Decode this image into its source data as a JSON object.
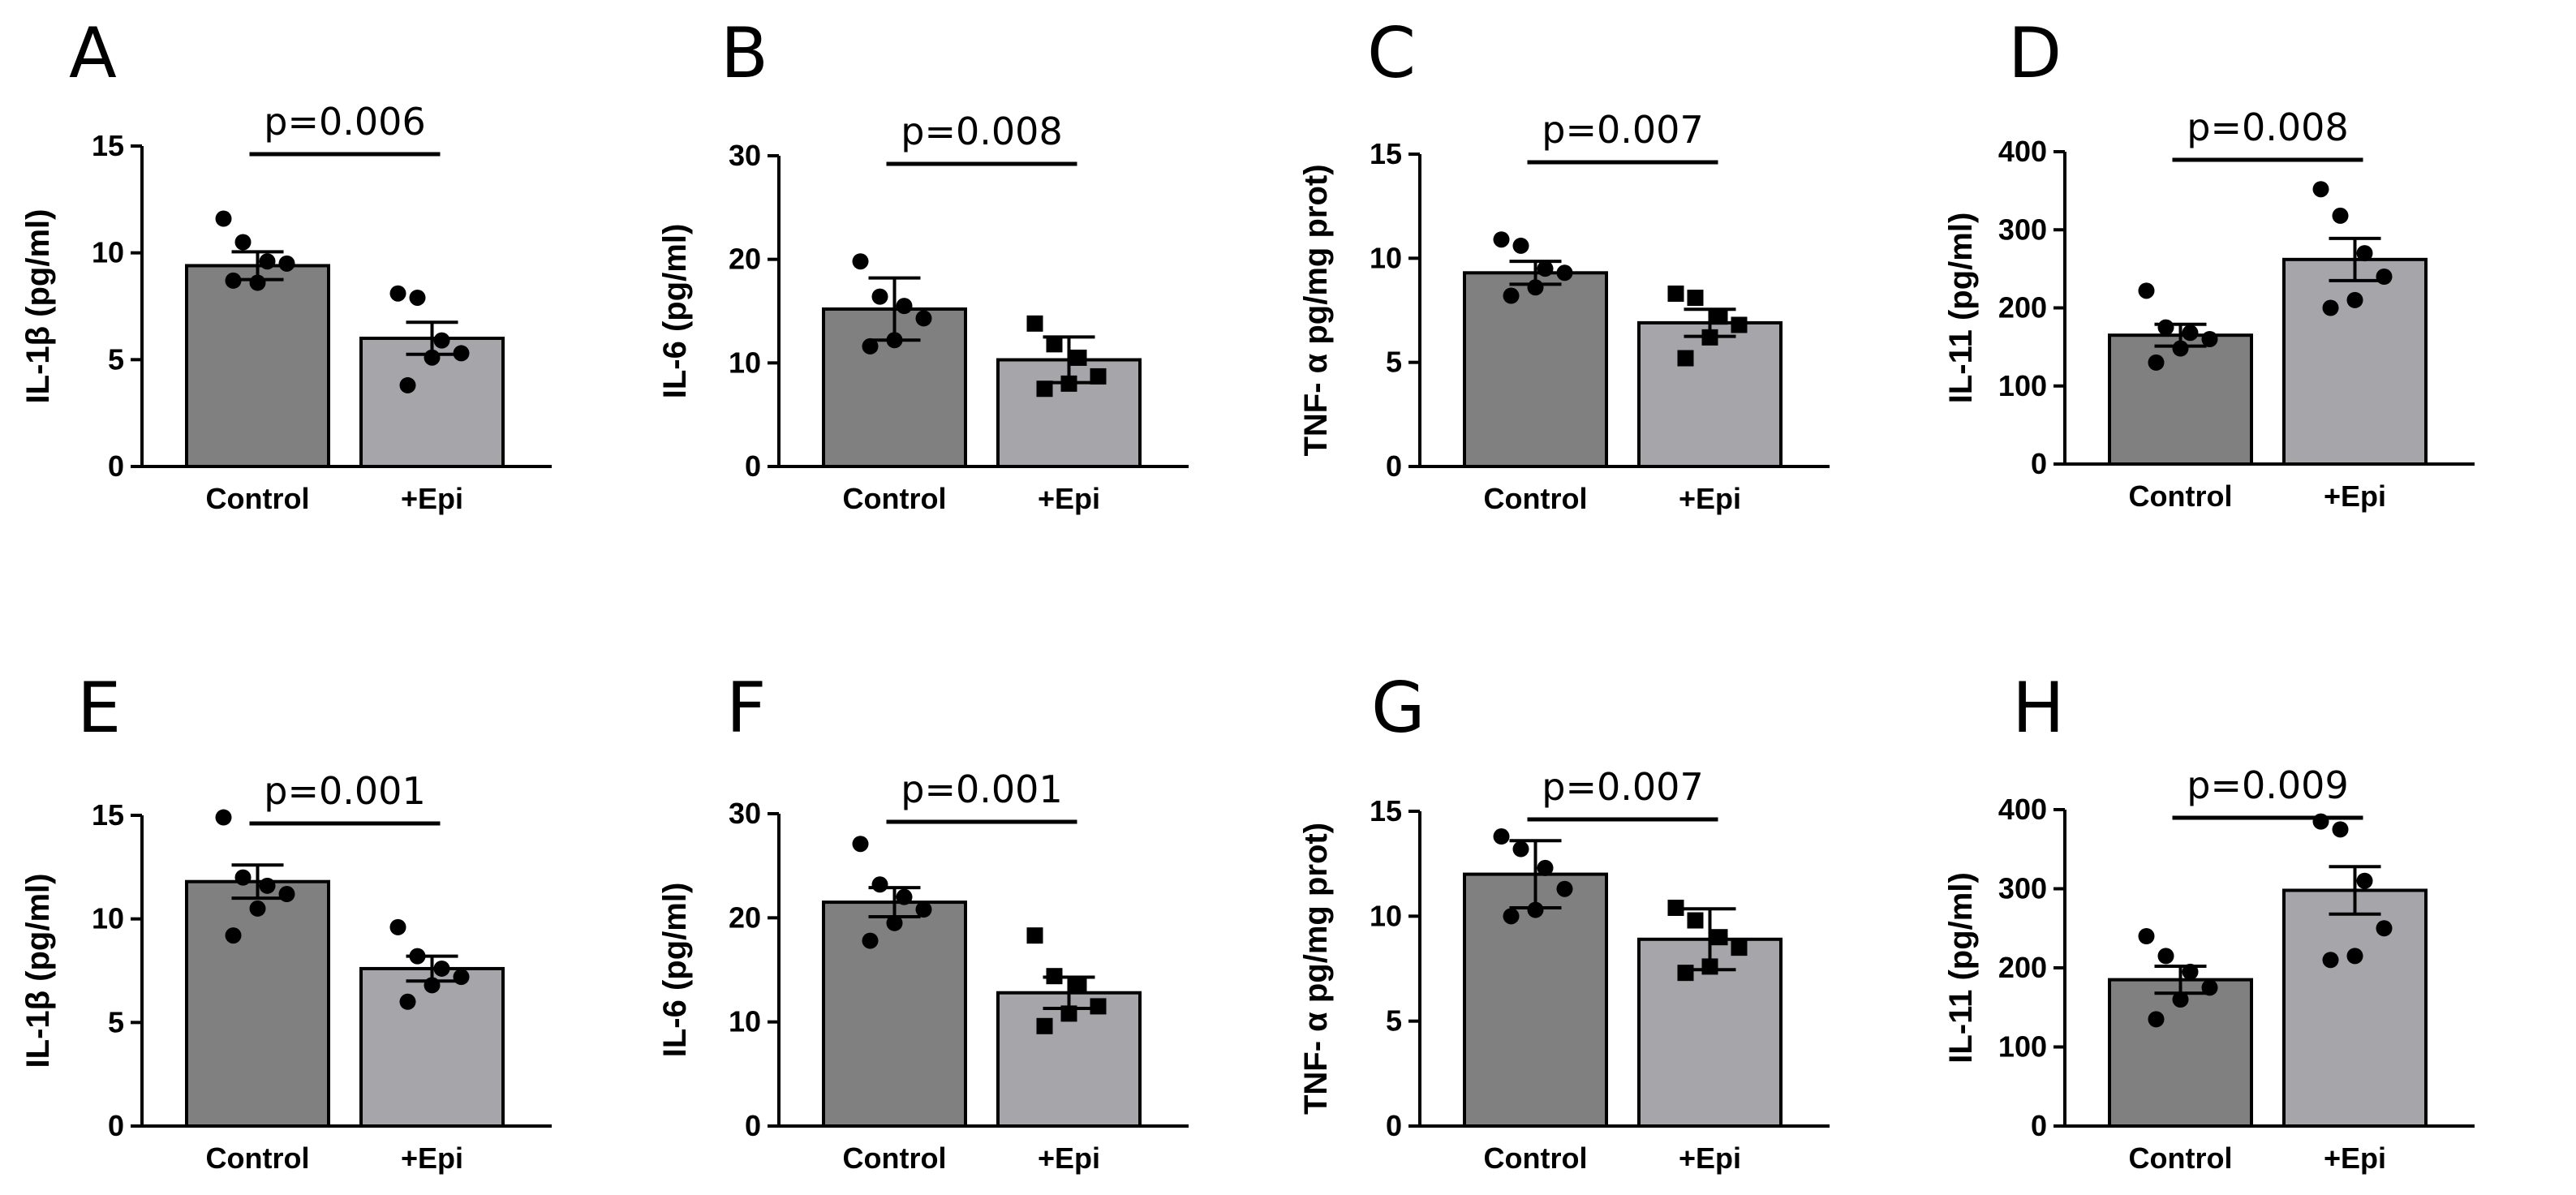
{
  "figure": {
    "colors": {
      "control": "#808080",
      "epi": "#a6a6aa",
      "ink": "#000000"
    }
  },
  "chart_data": [
    {
      "letter": "A",
      "type": "bar",
      "ylabel": "IL-1β (pg/ml)",
      "ylim": [
        0,
        15
      ],
      "yticks": [
        "0",
        "5",
        "10",
        "15"
      ],
      "categories": [
        "Control",
        "+Epi"
      ],
      "values": [
        9.4,
        6.0
      ],
      "errors": [
        0.65,
        0.75
      ],
      "markers": [
        "circle",
        "circle"
      ],
      "points": [
        [
          11.6,
          10.5,
          9.6,
          9.5,
          8.6,
          8.7
        ],
        [
          8.1,
          7.9,
          5.9,
          5.3,
          5.1,
          3.8
        ]
      ],
      "pvalue": "p=0.006"
    },
    {
      "letter": "B",
      "type": "bar",
      "ylabel": "IL-6 (pg/ml)",
      "ylim": [
        0,
        30
      ],
      "yticks": [
        "0",
        "10",
        "20",
        "30"
      ],
      "categories": [
        "Control",
        "+Epi"
      ],
      "values": [
        15.2,
        10.3
      ],
      "errors": [
        3.0,
        2.2
      ],
      "markers": [
        "circle",
        "square"
      ],
      "points": [
        [
          19.8,
          16.4,
          15.5,
          14.3,
          12.2,
          11.6
        ],
        [
          13.8,
          11.8,
          10.5,
          8.7,
          8.0,
          7.5
        ]
      ],
      "pvalue": "p=0.008"
    },
    {
      "letter": "C",
      "type": "bar",
      "ylabel": "TNF- α pg/mg prot)",
      "ylim": [
        0,
        15
      ],
      "yticks": [
        "0",
        "5",
        "10",
        "15"
      ],
      "categories": [
        "Control",
        "+Epi"
      ],
      "values": [
        9.3,
        6.9
      ],
      "errors": [
        0.55,
        0.65
      ],
      "markers": [
        "circle",
        "square"
      ],
      "points": [
        [
          10.9,
          10.6,
          9.5,
          9.3,
          8.6,
          8.2
        ],
        [
          8.3,
          8.1,
          7.2,
          6.8,
          6.2,
          5.2
        ]
      ],
      "pvalue": "p=0.007"
    },
    {
      "letter": "D",
      "type": "bar",
      "ylabel": "IL-11 (pg/ml)",
      "ylim": [
        0,
        400
      ],
      "yticks": [
        "0",
        "100",
        "200",
        "300",
        "400"
      ],
      "categories": [
        "Control",
        "+Epi"
      ],
      "values": [
        165,
        262
      ],
      "errors": [
        14,
        27
      ],
      "markers": [
        "circle",
        "circle"
      ],
      "points": [
        [
          222,
          175,
          168,
          160,
          148,
          130
        ],
        [
          352,
          318,
          270,
          240,
          210,
          200
        ]
      ],
      "pvalue": "p=0.008"
    },
    {
      "letter": "E",
      "type": "bar",
      "ylabel": "IL-1β (pg/ml)",
      "ylim": [
        0,
        15
      ],
      "yticks": [
        "0",
        "5",
        "10",
        "15"
      ],
      "categories": [
        "Control",
        "+Epi"
      ],
      "values": [
        11.8,
        7.6
      ],
      "errors": [
        0.8,
        0.6
      ],
      "markers": [
        "circle",
        "circle"
      ],
      "points": [
        [
          14.9,
          12.0,
          11.6,
          11.2,
          10.5,
          9.2
        ],
        [
          9.6,
          8.2,
          7.6,
          7.2,
          6.8,
          6.0
        ]
      ],
      "pvalue": "p=0.001"
    },
    {
      "letter": "F",
      "type": "bar",
      "ylabel": "IL-6 (pg/ml)",
      "ylim": [
        0,
        30
      ],
      "yticks": [
        "0",
        "10",
        "20",
        "30"
      ],
      "categories": [
        "Control",
        "+Epi"
      ],
      "values": [
        21.5,
        12.8
      ],
      "errors": [
        1.4,
        1.5
      ],
      "markers": [
        "circle",
        "square"
      ],
      "points": [
        [
          27.1,
          23.2,
          22.0,
          20.8,
          19.5,
          17.8
        ],
        [
          18.3,
          14.4,
          13.6,
          11.5,
          10.8,
          9.6
        ]
      ],
      "pvalue": "p=0.001"
    },
    {
      "letter": "G",
      "type": "bar",
      "ylabel": "TNF- α pg/mg prot)",
      "ylim": [
        0,
        15
      ],
      "yticks": [
        "0",
        "5",
        "10",
        "15"
      ],
      "categories": [
        "Control",
        "+Epi"
      ],
      "values": [
        12.0,
        8.9
      ],
      "errors": [
        1.6,
        1.45
      ],
      "markers": [
        "circle",
        "square"
      ],
      "points": [
        [
          13.8,
          13.2,
          12.3,
          11.3,
          10.3,
          10.0
        ],
        [
          10.4,
          9.8,
          9.0,
          8.5,
          7.6,
          7.3
        ]
      ],
      "pvalue": "p=0.007"
    },
    {
      "letter": "H",
      "type": "bar",
      "ylabel": "IL-11 (pg/ml)",
      "ylim": [
        0,
        400
      ],
      "yticks": [
        "0",
        "100",
        "200",
        "300",
        "400"
      ],
      "categories": [
        "Control",
        "+Epi"
      ],
      "values": [
        185,
        298
      ],
      "errors": [
        17,
        30
      ],
      "markers": [
        "circle",
        "circle"
      ],
      "points": [
        [
          240,
          215,
          195,
          175,
          160,
          135
        ],
        [
          385,
          375,
          310,
          250,
          215,
          210
        ]
      ],
      "pvalue": "p=0.009"
    }
  ]
}
